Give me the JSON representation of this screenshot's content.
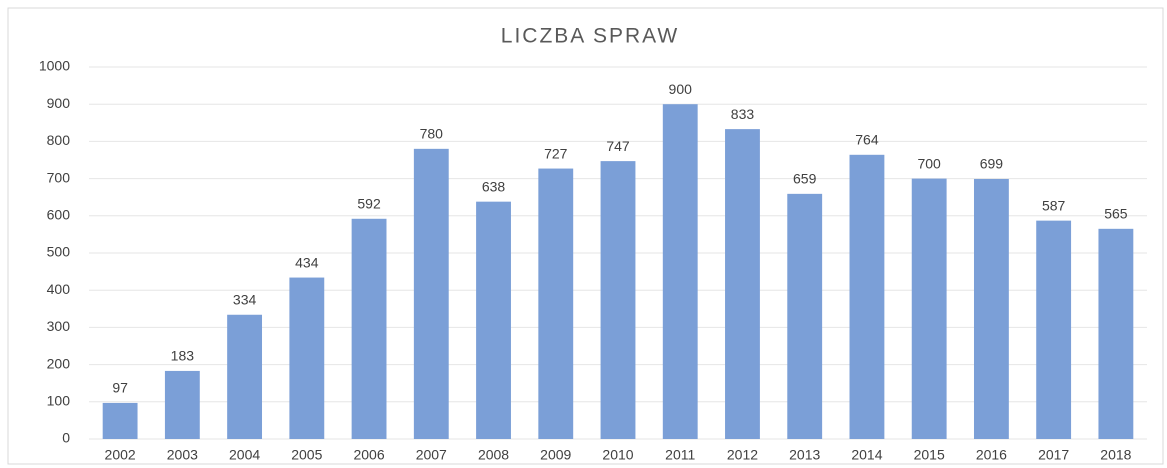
{
  "chart_data": {
    "type": "bar",
    "title": "LICZBA SPRAW",
    "categories": [
      "2002",
      "2003",
      "2004",
      "2005",
      "2006",
      "2007",
      "2008",
      "2009",
      "2010",
      "2011",
      "2012",
      "2013",
      "2014",
      "2015",
      "2016",
      "2017",
      "2018"
    ],
    "values": [
      97,
      183,
      334,
      434,
      592,
      780,
      638,
      727,
      747,
      900,
      833,
      659,
      764,
      700,
      699,
      587,
      565
    ],
    "color": "#7b9fd7",
    "ylim": [
      0,
      1000
    ],
    "yticks": [
      0,
      100,
      200,
      300,
      400,
      500,
      600,
      700,
      800,
      900,
      1000
    ],
    "grid": true
  }
}
